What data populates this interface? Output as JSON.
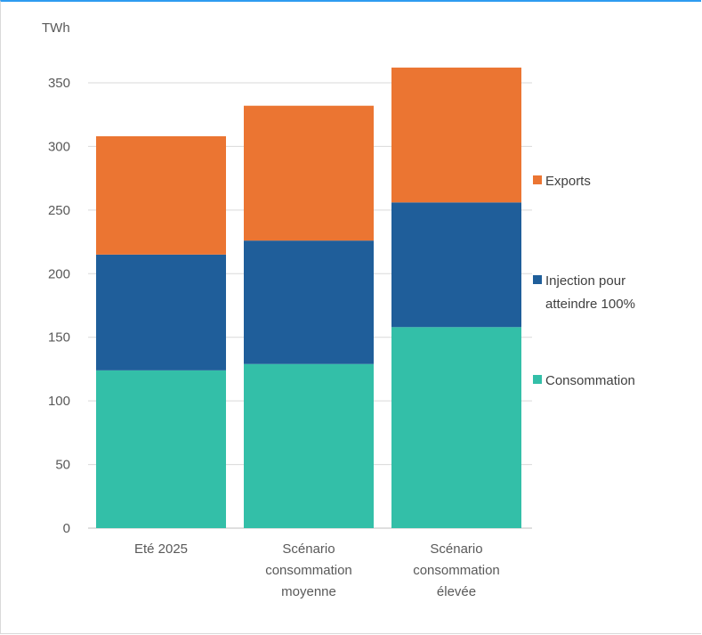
{
  "chart_data": {
    "type": "bar",
    "stacked": true,
    "unit_label": "TWh",
    "categories": [
      [
        "Eté 2025"
      ],
      [
        "Scénario",
        "consommation",
        "moyenne"
      ],
      [
        "Scénario",
        "consommation",
        "élevée"
      ]
    ],
    "series": [
      {
        "name": "Consommation",
        "color": "#33bfa8",
        "values": [
          124,
          129,
          158
        ]
      },
      {
        "name": "Injection pour atteindre 100%",
        "name_lines": [
          "Injection pour",
          "atteindre 100%"
        ],
        "color": "#1f5e9a",
        "values": [
          91,
          97,
          98
        ]
      },
      {
        "name": "Exports",
        "color": "#eb7532",
        "values": [
          93,
          106,
          106
        ]
      }
    ],
    "ylim": [
      0,
      350
    ],
    "yticks": [
      0,
      50,
      100,
      150,
      200,
      250,
      300,
      350
    ],
    "grid": true,
    "legend_position": "right"
  }
}
